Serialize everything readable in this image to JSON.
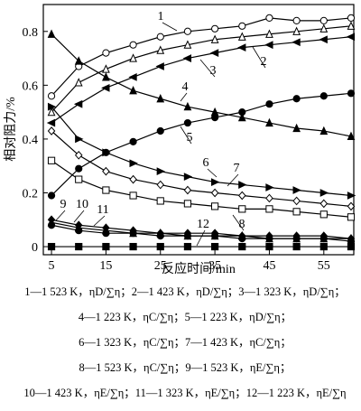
{
  "chart_data": {
    "type": "line",
    "xlabel": "反应时间/min",
    "ylabel": "相对阻力/%",
    "x": [
      5,
      10,
      15,
      20,
      25,
      30,
      35,
      40,
      45,
      50,
      55,
      60
    ],
    "xlim": [
      3.5,
      60.5
    ],
    "xticks": [
      5,
      15,
      25,
      35,
      45,
      55
    ],
    "ylim": [
      -0.03,
      0.9
    ],
    "yticks": [
      0,
      0.2,
      0.4,
      0.6,
      0.8
    ],
    "grid": false,
    "series": [
      {
        "name": "1",
        "color": "#000",
        "marker": "circle-open",
        "values": [
          0.56,
          0.67,
          0.72,
          0.75,
          0.78,
          0.8,
          0.81,
          0.82,
          0.85,
          0.84,
          0.84,
          0.85
        ]
      },
      {
        "name": "2",
        "color": "#000",
        "marker": "triangle-open",
        "values": [
          0.5,
          0.61,
          0.66,
          0.7,
          0.73,
          0.75,
          0.77,
          0.78,
          0.79,
          0.8,
          0.81,
          0.82
        ]
      },
      {
        "name": "3",
        "color": "#000",
        "marker": "triangle-left",
        "values": [
          0.46,
          0.53,
          0.59,
          0.63,
          0.67,
          0.7,
          0.72,
          0.74,
          0.75,
          0.76,
          0.77,
          0.78
        ]
      },
      {
        "name": "4",
        "color": "#000",
        "marker": "triangle",
        "values": [
          0.79,
          0.69,
          0.63,
          0.58,
          0.55,
          0.52,
          0.5,
          0.48,
          0.46,
          0.44,
          0.43,
          0.41
        ]
      },
      {
        "name": "5",
        "color": "#000",
        "marker": "circle",
        "values": [
          0.19,
          0.29,
          0.35,
          0.39,
          0.43,
          0.46,
          0.48,
          0.5,
          0.53,
          0.55,
          0.56,
          0.57
        ]
      },
      {
        "name": "6",
        "color": "#000",
        "marker": "triangle-right",
        "values": [
          0.52,
          0.4,
          0.35,
          0.31,
          0.28,
          0.26,
          0.24,
          0.23,
          0.22,
          0.21,
          0.2,
          0.19
        ]
      },
      {
        "name": "7",
        "color": "#000",
        "marker": "diamond-open",
        "values": [
          0.43,
          0.34,
          0.28,
          0.25,
          0.23,
          0.21,
          0.2,
          0.19,
          0.18,
          0.17,
          0.16,
          0.15
        ]
      },
      {
        "name": "8",
        "color": "#000",
        "marker": "square-open",
        "values": [
          0.32,
          0.25,
          0.21,
          0.19,
          0.17,
          0.16,
          0.15,
          0.14,
          0.14,
          0.13,
          0.12,
          0.11
        ]
      },
      {
        "name": "9",
        "color": "#000",
        "marker": "diamond",
        "values": [
          0.1,
          0.08,
          0.07,
          0.06,
          0.05,
          0.05,
          0.05,
          0.04,
          0.04,
          0.04,
          0.04,
          0.03
        ]
      },
      {
        "name": "10",
        "color": "#000",
        "marker": "triangle",
        "values": [
          0.09,
          0.07,
          0.06,
          0.05,
          0.05,
          0.04,
          0.04,
          0.04,
          0.03,
          0.03,
          0.03,
          0.03
        ]
      },
      {
        "name": "11",
        "color": "#000",
        "marker": "circle",
        "values": [
          0.08,
          0.06,
          0.05,
          0.05,
          0.04,
          0.04,
          0.04,
          0.03,
          0.03,
          0.03,
          0.03,
          0.02
        ]
      },
      {
        "name": "12",
        "color": "#000",
        "marker": "square",
        "values": [
          0,
          0,
          0,
          0,
          0,
          0,
          0,
          0,
          0,
          0,
          0,
          0
        ]
      }
    ],
    "caption_lines": [
      "1—1 523 K，ηD/∑η；2—1 423 K，ηD/∑η；3—1 323 K，ηD/∑η；",
      "4—1 223 K，ηC/∑η；5—1 223 K，ηD/∑η；",
      "6—1 323 K，ηC/∑η；7—1 423 K，ηC/∑η；",
      "8—1 523 K，ηC/∑η；9—1 523 K，ηE/∑η；",
      "10—1 423 K，ηE/∑η；11—1 323 K，ηE/∑η；12—1 223 K，ηE/∑η"
    ]
  }
}
